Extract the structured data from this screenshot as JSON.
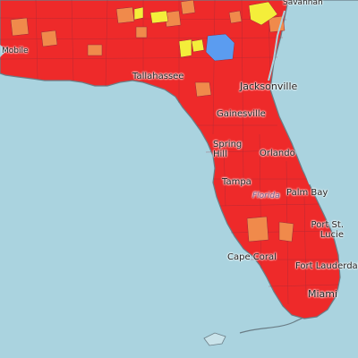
{
  "map": {
    "colors": {
      "water": "#aad3df",
      "red": "#ee2a2a",
      "orange": "#f08a4b",
      "yellow": "#f4ee3a",
      "blue": "#5b9cf0",
      "county_line": "#9a2a3a",
      "coast": "#6a7d86"
    },
    "labels": {
      "jacksonville": "Jacksonville",
      "tallahassee": "Tallahassee",
      "gainesville": "Gainesville",
      "spring_hill": "Spring Hill",
      "orlando": "Orlando",
      "tampa": "Tampa",
      "florida": "Florida",
      "palm_bay": "Palm Bay",
      "port_st_lucie": "Port St. Lucie",
      "cape_coral": "Cape Coral",
      "fort_lauderdale": "Fort Lauderdale",
      "miami": "Miami",
      "mobile": "Mobile",
      "savannah": "Savannah"
    }
  }
}
